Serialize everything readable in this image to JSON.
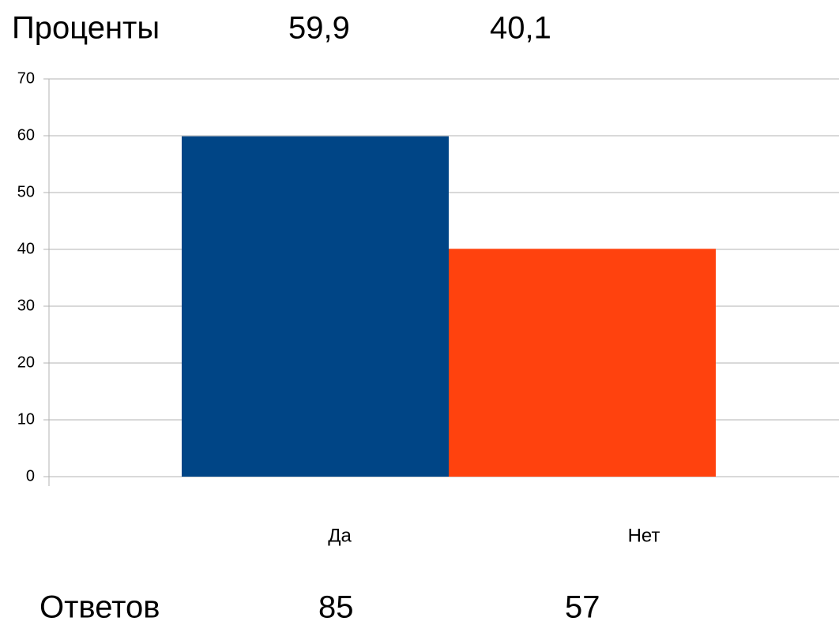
{
  "chart_data": {
    "type": "bar",
    "categories": [
      "Да",
      "Нет"
    ],
    "series": [
      {
        "name": "Проценты",
        "values": [
          59.9,
          40.1
        ],
        "value_labels": [
          "59,9",
          "40,1"
        ],
        "colors": [
          "#004586",
          "#ff420e"
        ]
      }
    ],
    "counts": {
      "name": "Ответов",
      "values": [
        85,
        57
      ]
    },
    "ylim": [
      0,
      70
    ],
    "yticks": [
      0,
      10,
      20,
      30,
      40,
      50,
      60,
      70
    ],
    "grid": true
  }
}
